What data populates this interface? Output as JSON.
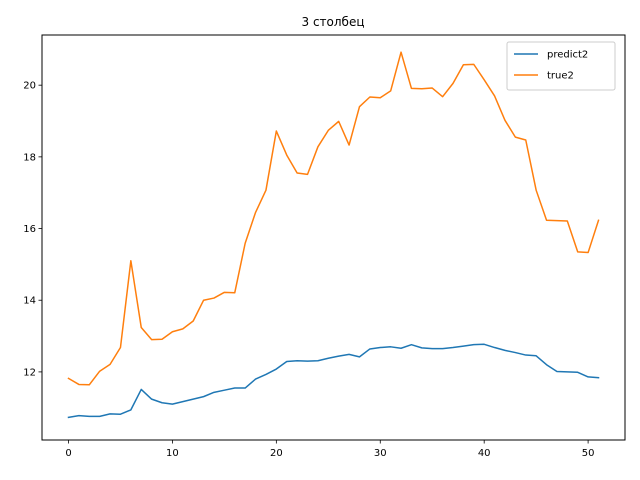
{
  "chart_data": {
    "type": "line",
    "title": "3 столбец",
    "xlabel": "",
    "ylabel": "",
    "xlim": [
      -2.55,
      53.55
    ],
    "ylim": [
      10.1,
      21.4
    ],
    "xticks": [
      0,
      10,
      20,
      30,
      40,
      50
    ],
    "yticks": [
      12,
      14,
      16,
      18,
      20
    ],
    "grid": false,
    "legend_position": "top-right",
    "series": [
      {
        "name": "predict2",
        "color": "#1f77b4",
        "x": [
          0,
          1,
          2,
          3,
          4,
          5,
          6,
          7,
          8,
          9,
          10,
          11,
          12,
          13,
          14,
          15,
          16,
          17,
          18,
          19,
          20,
          21,
          22,
          23,
          24,
          25,
          26,
          27,
          28,
          29,
          30,
          31,
          32,
          33,
          34,
          35,
          36,
          37,
          38,
          39,
          40,
          41,
          42,
          43,
          44,
          45,
          46,
          47,
          48,
          49,
          50,
          51
        ],
        "values": [
          10.73,
          10.78,
          10.76,
          10.76,
          10.83,
          10.82,
          10.94,
          11.51,
          11.24,
          11.14,
          11.1,
          11.17,
          11.24,
          11.31,
          11.43,
          11.49,
          11.55,
          11.55,
          11.8,
          11.93,
          12.08,
          12.29,
          12.31,
          12.3,
          12.31,
          12.38,
          12.44,
          12.49,
          12.42,
          12.64,
          12.68,
          12.7,
          12.66,
          12.76,
          12.67,
          12.65,
          12.65,
          12.68,
          12.72,
          12.76,
          12.77,
          12.68,
          12.6,
          12.54,
          12.47,
          12.45,
          12.2,
          12.01,
          12.0,
          11.99,
          11.86,
          11.84
        ]
      },
      {
        "name": "true2",
        "color": "#ff7f0e",
        "x": [
          0,
          1,
          2,
          3,
          4,
          5,
          6,
          7,
          8,
          9,
          10,
          11,
          12,
          13,
          14,
          15,
          16,
          17,
          18,
          19,
          20,
          21,
          22,
          23,
          24,
          25,
          26,
          27,
          28,
          29,
          30,
          31,
          32,
          33,
          34,
          35,
          36,
          37,
          38,
          39,
          40,
          41,
          42,
          43,
          44,
          45,
          46,
          47,
          48,
          49,
          50,
          51
        ],
        "values": [
          11.82,
          11.65,
          11.64,
          12.02,
          12.21,
          12.68,
          15.1,
          13.24,
          12.9,
          12.91,
          13.12,
          13.2,
          13.42,
          14.0,
          14.06,
          14.22,
          14.21,
          15.59,
          16.45,
          17.07,
          18.72,
          18.05,
          17.55,
          17.51,
          18.28,
          18.74,
          18.99,
          18.33,
          19.4,
          19.67,
          19.65,
          19.84,
          20.92,
          19.91,
          19.9,
          19.92,
          19.68,
          20.05,
          20.57,
          20.58,
          20.15,
          19.7,
          19.02,
          18.55,
          18.47,
          17.07,
          16.23,
          16.22,
          16.21,
          15.35,
          15.33,
          16.23
        ]
      }
    ]
  }
}
